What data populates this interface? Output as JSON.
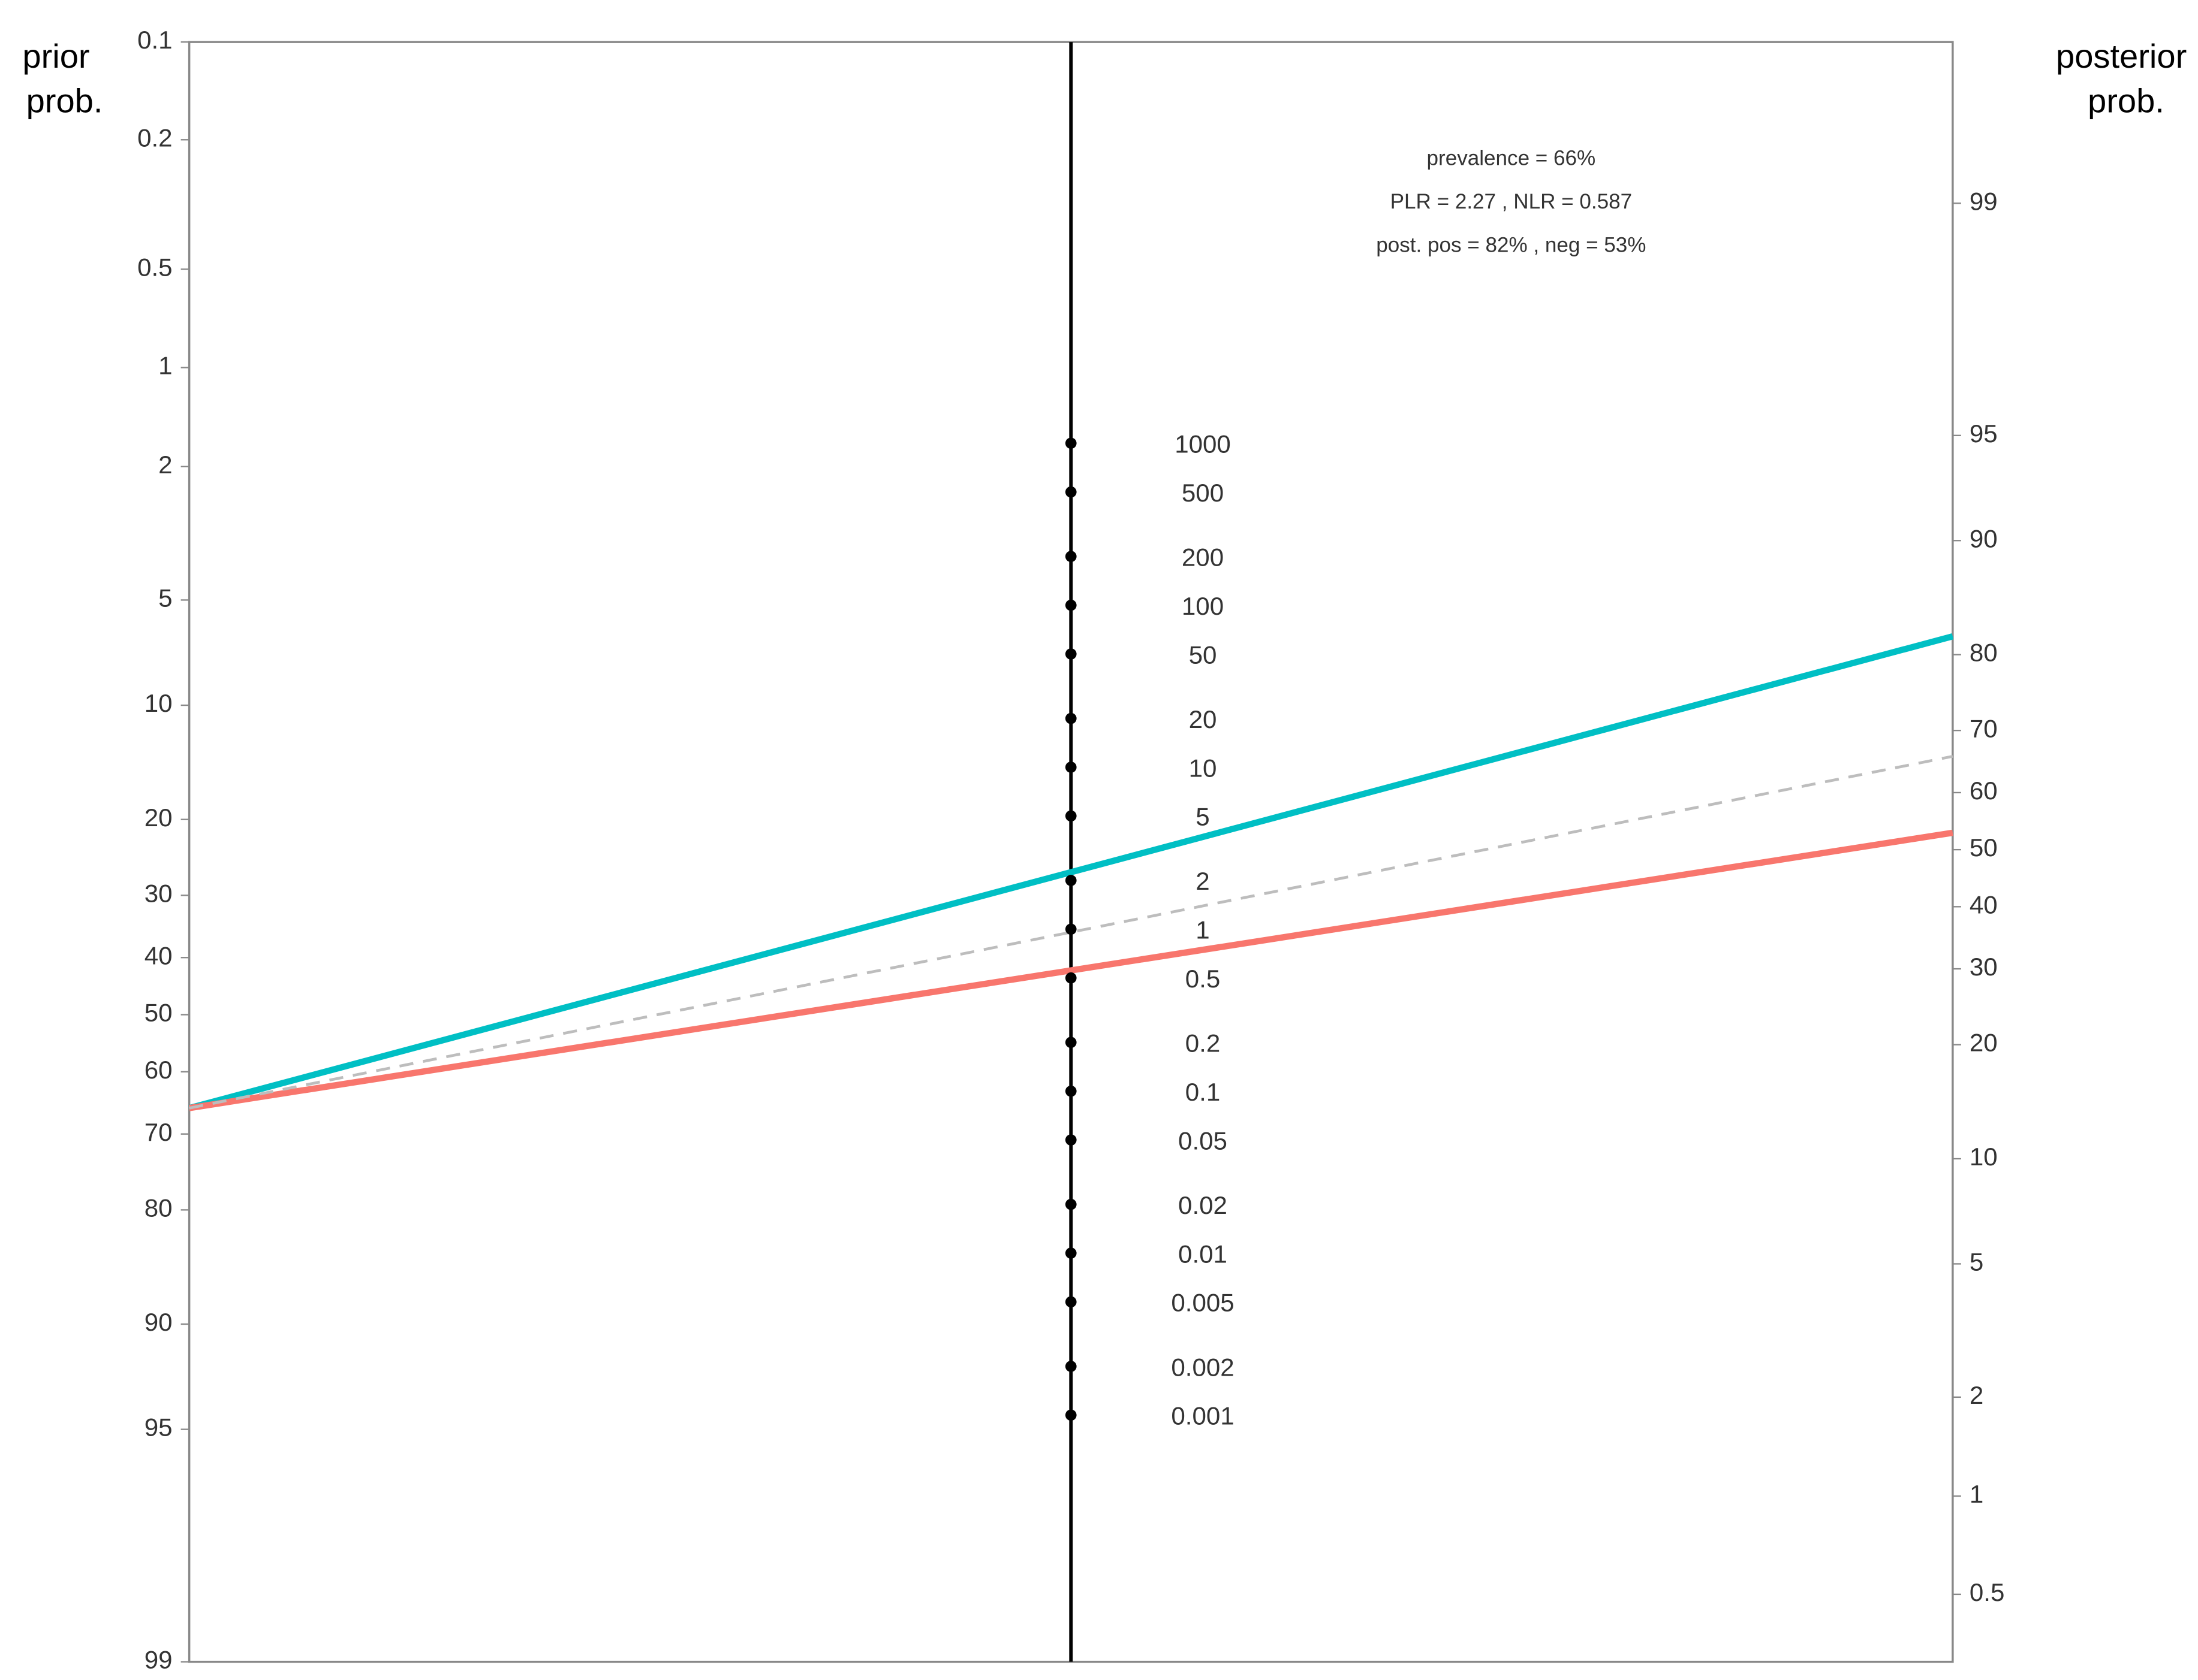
{
  "chart_data": {
    "type": "nomogram",
    "ylabel": [
      "prior",
      "prob."
    ],
    "y2label": [
      "posterior",
      "prob."
    ],
    "annotations": [
      "prevalence = 66%",
      "PLR = 2.27 , NLR = 0.587",
      "post. pos = 82% , neg = 53%"
    ],
    "ylim": [
      0.1,
      99
    ],
    "yticks": [
      0.1,
      0.2,
      0.5,
      1,
      2,
      5,
      10,
      20,
      30,
      40,
      50,
      60,
      70,
      80,
      90,
      95,
      99
    ],
    "y2lim": [
      99.68,
      0.31
    ],
    "y2ticks": [
      99,
      95,
      90,
      80,
      70,
      60,
      50,
      40,
      30,
      20,
      10,
      5,
      2,
      1,
      0.5
    ],
    "lrlim": [
      300000,
      3e-05
    ],
    "lrticks": [
      1000,
      500,
      200,
      100,
      50,
      20,
      10,
      5,
      2,
      1,
      0.5,
      0.2,
      0.1,
      0.05,
      0.02,
      0.01,
      0.005,
      0.002,
      0.001
    ],
    "series": [
      {
        "color": "#00bfc4",
        "prior": 66,
        "posterior": 82,
        "dashed": false
      },
      {
        "color": "#f8766d",
        "prior": 66,
        "posterior": 53,
        "dashed": false
      },
      {
        "color": "#bdbdbd",
        "prior": 66,
        "posterior": 66,
        "dashed": true
      }
    ]
  }
}
